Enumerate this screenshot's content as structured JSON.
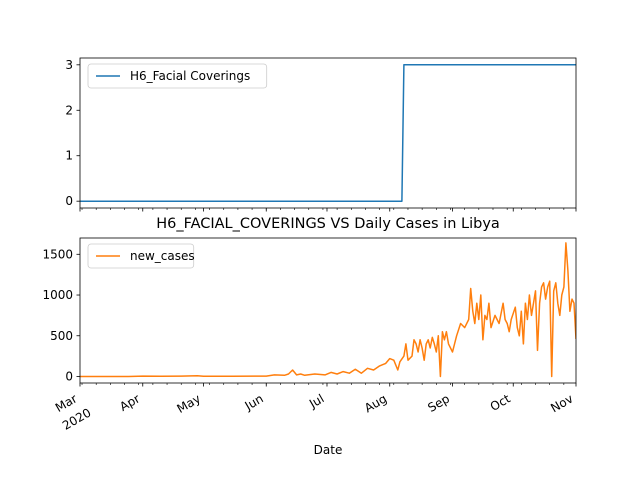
{
  "chart_data": [
    {
      "type": "line",
      "title": "",
      "legend_position": "upper-left",
      "grid": false,
      "x_range": [
        "2020-03-01",
        "2020-11-01"
      ],
      "ylim": [
        -0.15,
        3.15
      ],
      "yticks": [
        0,
        1,
        2,
        3
      ],
      "series": [
        {
          "name": "H6_Facial Coverings",
          "color": "#1f77b4",
          "points": [
            [
              "2020-03-01",
              0
            ],
            [
              "2020-08-07",
              0
            ],
            [
              "2020-08-08",
              3
            ],
            [
              "2020-11-01",
              3
            ]
          ]
        }
      ]
    },
    {
      "type": "line",
      "title": "H6_FACIAL_COVERINGS VS Daily Cases in Libya",
      "xlabel": "Date",
      "legend_position": "upper-left",
      "grid": false,
      "x_range": [
        "2020-03-01",
        "2020-11-01"
      ],
      "ylim": [
        -80,
        1700
      ],
      "yticks": [
        0,
        500,
        1000,
        1500
      ],
      "xticks": [
        {
          "date": "2020-03-01",
          "label": "Mar",
          "sublabel": "2020"
        },
        {
          "date": "2020-04-01",
          "label": "Apr"
        },
        {
          "date": "2020-05-01",
          "label": "May"
        },
        {
          "date": "2020-06-01",
          "label": "Jun"
        },
        {
          "date": "2020-07-01",
          "label": "Jul"
        },
        {
          "date": "2020-08-01",
          "label": "Aug"
        },
        {
          "date": "2020-09-01",
          "label": "Sep"
        },
        {
          "date": "2020-10-01",
          "label": "Oct"
        },
        {
          "date": "2020-11-01",
          "label": "Nov"
        }
      ],
      "series": [
        {
          "name": "new_cases",
          "color": "#ff7f0e",
          "points": [
            [
              "2020-03-01",
              0
            ],
            [
              "2020-03-25",
              0
            ],
            [
              "2020-04-01",
              5
            ],
            [
              "2020-04-10",
              3
            ],
            [
              "2020-04-20",
              5
            ],
            [
              "2020-04-28",
              10
            ],
            [
              "2020-05-01",
              3
            ],
            [
              "2020-05-15",
              2
            ],
            [
              "2020-06-01",
              5
            ],
            [
              "2020-06-05",
              20
            ],
            [
              "2020-06-10",
              15
            ],
            [
              "2020-06-12",
              30
            ],
            [
              "2020-06-14",
              80
            ],
            [
              "2020-06-16",
              20
            ],
            [
              "2020-06-18",
              30
            ],
            [
              "2020-06-20",
              15
            ],
            [
              "2020-06-25",
              30
            ],
            [
              "2020-06-30",
              20
            ],
            [
              "2020-07-03",
              50
            ],
            [
              "2020-07-06",
              30
            ],
            [
              "2020-07-09",
              60
            ],
            [
              "2020-07-12",
              40
            ],
            [
              "2020-07-15",
              90
            ],
            [
              "2020-07-18",
              40
            ],
            [
              "2020-07-21",
              100
            ],
            [
              "2020-07-24",
              80
            ],
            [
              "2020-07-27",
              130
            ],
            [
              "2020-07-30",
              160
            ],
            [
              "2020-08-01",
              220
            ],
            [
              "2020-08-03",
              200
            ],
            [
              "2020-08-05",
              80
            ],
            [
              "2020-08-06",
              180
            ],
            [
              "2020-08-08",
              250
            ],
            [
              "2020-08-09",
              400
            ],
            [
              "2020-08-10",
              200
            ],
            [
              "2020-08-12",
              250
            ],
            [
              "2020-08-13",
              450
            ],
            [
              "2020-08-14",
              400
            ],
            [
              "2020-08-15",
              300
            ],
            [
              "2020-08-16",
              450
            ],
            [
              "2020-08-17",
              350
            ],
            [
              "2020-08-18",
              200
            ],
            [
              "2020-08-19",
              400
            ],
            [
              "2020-08-20",
              450
            ],
            [
              "2020-08-21",
              350
            ],
            [
              "2020-08-22",
              480
            ],
            [
              "2020-08-23",
              400
            ],
            [
              "2020-08-24",
              300
            ],
            [
              "2020-08-25",
              500
            ],
            [
              "2020-08-26",
              0
            ],
            [
              "2020-08-27",
              550
            ],
            [
              "2020-08-28",
              450
            ],
            [
              "2020-08-29",
              550
            ],
            [
              "2020-08-30",
              400
            ],
            [
              "2020-09-01",
              300
            ],
            [
              "2020-09-03",
              500
            ],
            [
              "2020-09-05",
              650
            ],
            [
              "2020-09-07",
              600
            ],
            [
              "2020-09-09",
              700
            ],
            [
              "2020-09-10",
              1080
            ],
            [
              "2020-09-11",
              800
            ],
            [
              "2020-09-12",
              650
            ],
            [
              "2020-09-13",
              900
            ],
            [
              "2020-09-14",
              700
            ],
            [
              "2020-09-15",
              1000
            ],
            [
              "2020-09-16",
              450
            ],
            [
              "2020-09-17",
              750
            ],
            [
              "2020-09-18",
              700
            ],
            [
              "2020-09-19",
              900
            ],
            [
              "2020-09-20",
              600
            ],
            [
              "2020-09-22",
              750
            ],
            [
              "2020-09-24",
              650
            ],
            [
              "2020-09-26",
              900
            ],
            [
              "2020-09-27",
              700
            ],
            [
              "2020-09-28",
              650
            ],
            [
              "2020-09-29",
              550
            ],
            [
              "2020-09-30",
              700
            ],
            [
              "2020-10-02",
              850
            ],
            [
              "2020-10-03",
              600
            ],
            [
              "2020-10-04",
              500
            ],
            [
              "2020-10-05",
              800
            ],
            [
              "2020-10-06",
              400
            ],
            [
              "2020-10-07",
              900
            ],
            [
              "2020-10-08",
              700
            ],
            [
              "2020-10-09",
              1000
            ],
            [
              "2020-10-10",
              750
            ],
            [
              "2020-10-12",
              1050
            ],
            [
              "2020-10-13",
              320
            ],
            [
              "2020-10-14",
              900
            ],
            [
              "2020-10-15",
              1100
            ],
            [
              "2020-10-16",
              1150
            ],
            [
              "2020-10-17",
              950
            ],
            [
              "2020-10-18",
              1100
            ],
            [
              "2020-10-19",
              1170
            ],
            [
              "2020-10-20",
              0
            ],
            [
              "2020-10-21",
              1050
            ],
            [
              "2020-10-22",
              1150
            ],
            [
              "2020-10-23",
              900
            ],
            [
              "2020-10-24",
              750
            ],
            [
              "2020-10-25",
              1000
            ],
            [
              "2020-10-26",
              1100
            ],
            [
              "2020-10-27",
              1640
            ],
            [
              "2020-10-28",
              1300
            ],
            [
              "2020-10-29",
              800
            ],
            [
              "2020-10-30",
              950
            ],
            [
              "2020-10-31",
              900
            ],
            [
              "2020-11-01",
              460
            ]
          ]
        }
      ]
    }
  ]
}
